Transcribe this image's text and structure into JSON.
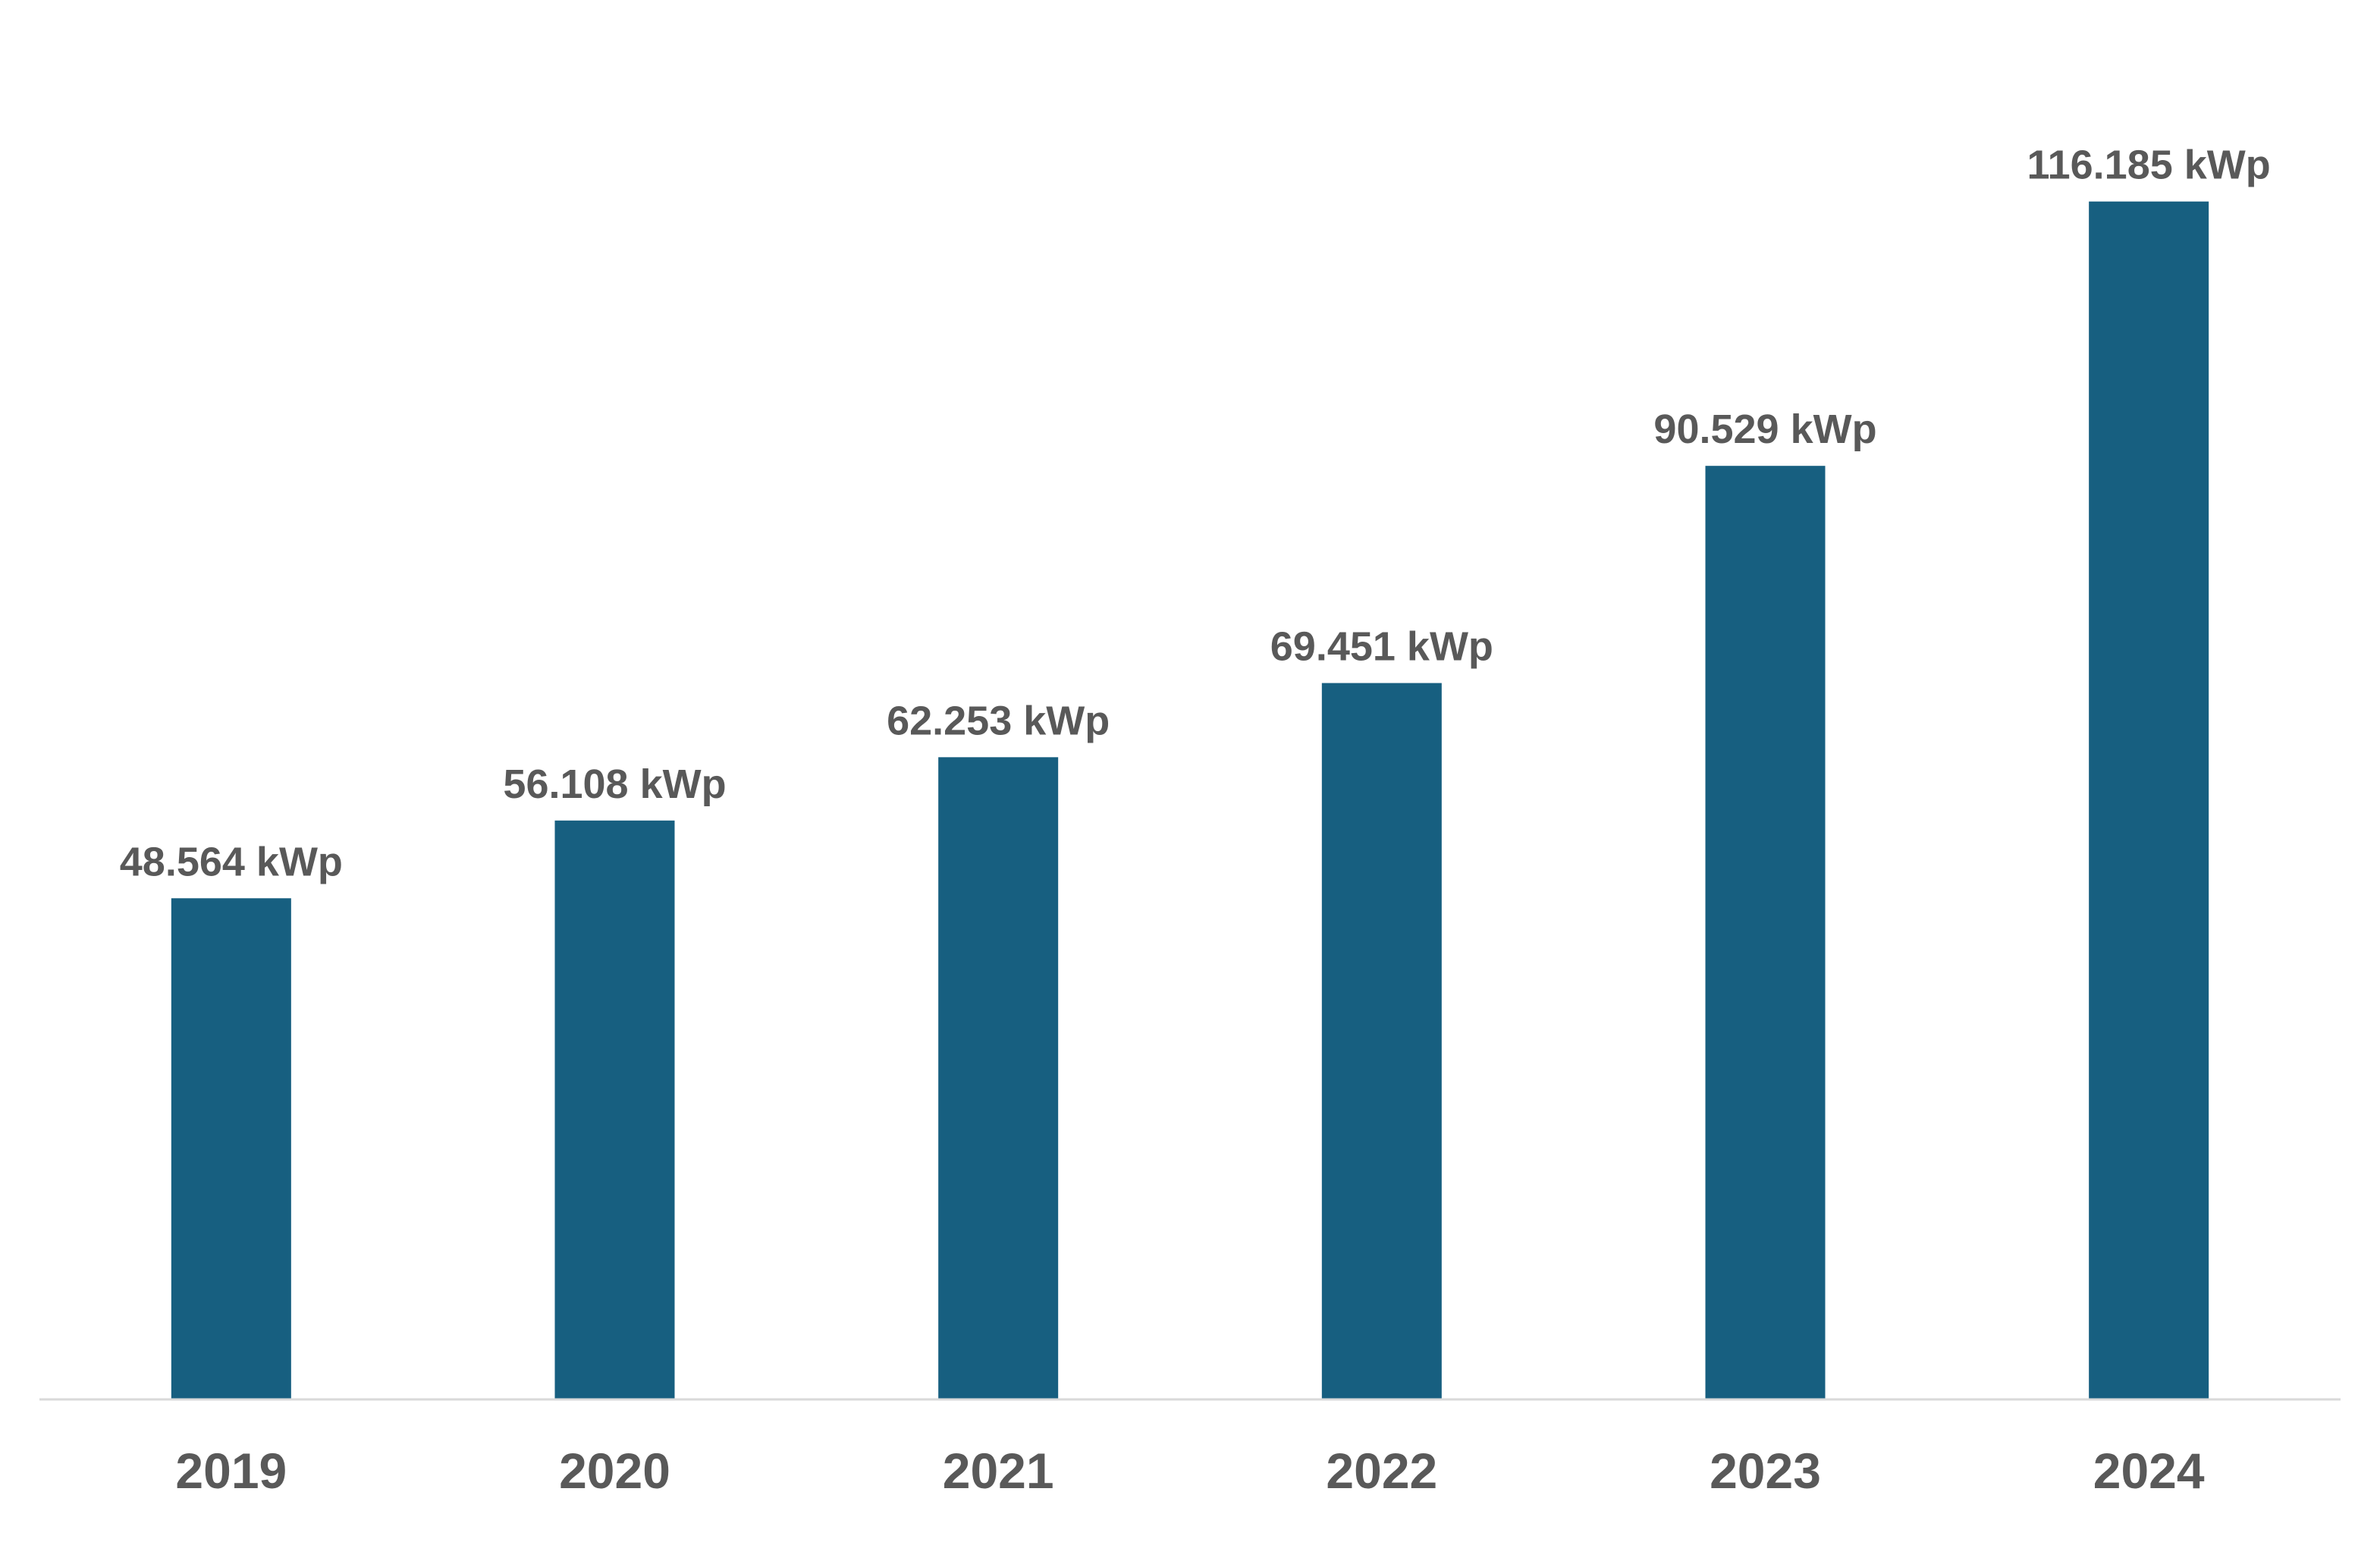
{
  "chart_data": {
    "type": "bar",
    "categories": [
      "2019",
      "2020",
      "2021",
      "2022",
      "2023",
      "2024"
    ],
    "values": [
      48564,
      56108,
      62253,
      69451,
      90529,
      116185
    ],
    "data_labels": [
      "48.564 kWp",
      "56.108 kWp",
      "62.253 kWp",
      "69.451 kWp",
      "90.529 kWp",
      "116.185 kWp"
    ],
    "unit": "kWp",
    "title": "",
    "xlabel": "",
    "ylabel": "",
    "ylim": [
      0,
      130000
    ],
    "grid": false,
    "legend": "none",
    "colors": {
      "bar": "#175F80",
      "label_text": "#595959",
      "axis_line": "#D9D9D9"
    }
  }
}
